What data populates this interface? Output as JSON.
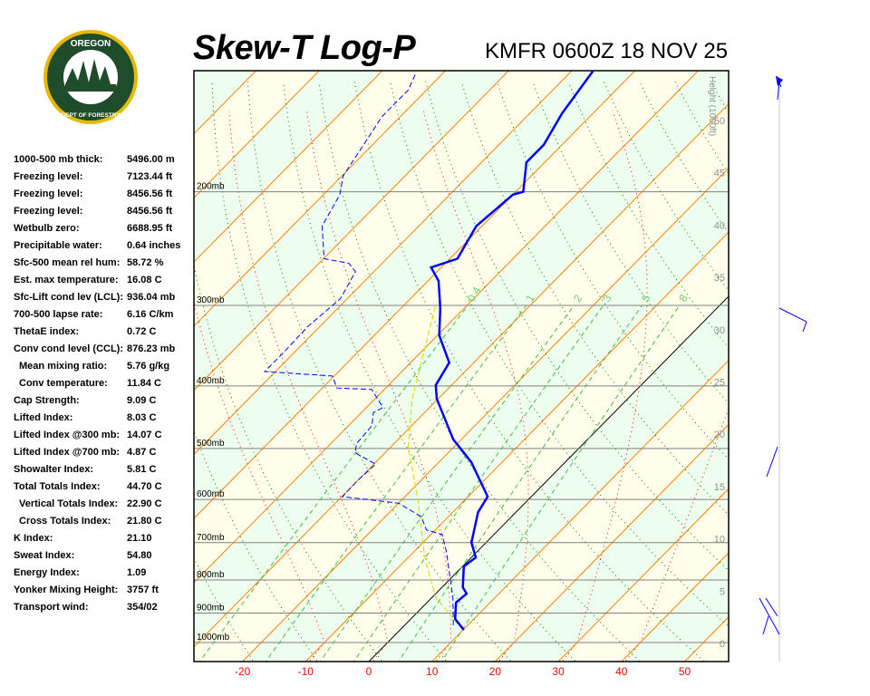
{
  "header": {
    "title": "Skew-T Log-P",
    "station": "KMFR 0600Z 18 NOV 25",
    "logo_text": [
      "OREGON",
      "DEPARTMENT OF FORESTRY"
    ]
  },
  "stats": [
    {
      "label": "1000-500 mb thick:",
      "value": "5496.00 m"
    },
    {
      "label": "Freezing level:",
      "value": "7123.44 ft"
    },
    {
      "label": "Freezing level:",
      "value": "8456.56 ft"
    },
    {
      "label": "Freezing level:",
      "value": "8456.56 ft"
    },
    {
      "label": "Wetbulb zero:",
      "value": "6688.95 ft"
    },
    {
      "label": "Precipitable water:",
      "value": "0.64 inches"
    },
    {
      "label": "Sfc-500 mean rel hum:",
      "value": "58.72 %"
    },
    {
      "label": "Est. max temperature:",
      "value": "16.08 C"
    },
    {
      "label": "Sfc-Lift cond lev (LCL):",
      "value": "936.04 mb"
    },
    {
      "label": "700-500 lapse rate:",
      "value": "6.16 C/km"
    },
    {
      "label": "ThetaE index:",
      "value": "0.72 C"
    },
    {
      "label": "Conv cond level (CCL):",
      "value": "876.23 mb"
    },
    {
      "label": "Mean mixing ratio:",
      "value": "5.76 g/kg",
      "indent": true
    },
    {
      "label": "Conv temperature:",
      "value": "11.84 C",
      "indent": true
    },
    {
      "label": "Cap Strength:",
      "value": "9.09 C"
    },
    {
      "label": "Lifted Index:",
      "value": "8.03 C"
    },
    {
      "label": "Lifted Index @300 mb:",
      "value": "14.07 C"
    },
    {
      "label": "Lifted Index @700 mb:",
      "value": "4.87 C"
    },
    {
      "label": "Showalter Index:",
      "value": "5.81 C"
    },
    {
      "label": "Total Totals Index:",
      "value": "44.70 C"
    },
    {
      "label": "Vertical Totals Index:",
      "value": "22.90 C",
      "indent": true
    },
    {
      "label": "Cross Totals Index:",
      "value": "21.80 C",
      "indent": true
    },
    {
      "label": "K Index:",
      "value": "21.10"
    },
    {
      "label": "Sweat Index:",
      "value": "54.80"
    },
    {
      "label": "Energy Index:",
      "value": "1.09"
    },
    {
      "label": "Yonker Mixing Height:",
      "value": "3757 ft"
    },
    {
      "label": "Transport wind:",
      "value": "354/02"
    }
  ],
  "chart_data": {
    "type": "skew-t log-p",
    "xlabel_ticks": [
      "-20",
      "-10",
      "0",
      "10",
      "20",
      "30",
      "40",
      "50"
    ],
    "x_tick_values": [
      -20,
      -10,
      0,
      10,
      20,
      30,
      40,
      50
    ],
    "xlim_celsius": [
      -28,
      57
    ],
    "pressure_levels": [
      200,
      300,
      400,
      500,
      600,
      700,
      800,
      900,
      1000
    ],
    "pressure_labels": [
      "200mb",
      "300mb",
      "400mb",
      "500mb",
      "600mb",
      "700mb",
      "800mb",
      "900mb",
      "1000mb"
    ],
    "plim_mb": [
      1070,
      130
    ],
    "height_axis_label": "Height (1000ft)",
    "height_ticks_kft": [
      "0",
      "5",
      "10",
      "15",
      "20",
      "25",
      "30",
      "35",
      "40",
      "45",
      "50"
    ],
    "mixing_ratio_labels": [
      "0.4",
      "1",
      "2",
      "3",
      "5",
      "8"
    ],
    "mixing_ratio_values": [
      0.4,
      1,
      2,
      3,
      5,
      8
    ],
    "colors": {
      "temperature": "#0000ff",
      "dewpoint": "#0000ff",
      "parcel": "#e0e000",
      "isotherm": "#ff8000",
      "dry_adiabat": "#008000",
      "moist_adiabat": "#ff0000",
      "mixing_ratio": "#40c040",
      "band_green": "#eefeee",
      "band_yellow": "#fefeea",
      "tick_label": "#ff0000"
    },
    "temperature": [
      [
        956,
        10.1
      ],
      [
        919,
        7.0
      ],
      [
        867,
        4.6
      ],
      [
        840,
        4.9
      ],
      [
        821,
        3.3
      ],
      [
        762,
        0.2
      ],
      [
        738,
        0.7
      ],
      [
        700,
        -2.3
      ],
      [
        628,
        -6.0
      ],
      [
        594,
        -6.9
      ],
      [
        525,
        -14.9
      ],
      [
        484,
        -21.3
      ],
      [
        419,
        -30.2
      ],
      [
        399,
        -32.5
      ],
      [
        368,
        -33.9
      ],
      [
        334,
        -39.7
      ],
      [
        303,
        -43.8
      ],
      [
        275,
        -48.3
      ],
      [
        262,
        -51.6
      ],
      [
        254,
        -48.8
      ],
      [
        226,
        -50.9
      ],
      [
        202,
        -50.0
      ],
      [
        200,
        -48.8
      ],
      [
        180,
        -52.9
      ],
      [
        169,
        -52.9
      ],
      [
        151,
        -54.9
      ],
      [
        130,
        -56.6
      ]
    ],
    "dewpoint": [
      [
        940,
        7.7
      ],
      [
        853,
        3.4
      ],
      [
        800,
        0.2
      ],
      [
        721,
        -5.0
      ],
      [
        680,
        -8.2
      ],
      [
        669,
        -11.4
      ],
      [
        638,
        -14.3
      ],
      [
        608,
        -20.0
      ],
      [
        594,
        -29.9
      ],
      [
        560,
        -30.0
      ],
      [
        529,
        -29.7
      ],
      [
        508,
        -34.7
      ],
      [
        492,
        -35.9
      ],
      [
        461,
        -36.3
      ],
      [
        440,
        -38.1
      ],
      [
        432,
        -37.4
      ],
      [
        405,
        -42.0
      ],
      [
        403,
        -47.7
      ],
      [
        386,
        -50.3
      ],
      [
        380,
        -61.7
      ],
      [
        356,
        -61.7
      ],
      [
        323,
        -61.9
      ],
      [
        293,
        -61.1
      ],
      [
        266,
        -62.9
      ],
      [
        258,
        -65.3
      ],
      [
        254,
        -69.9
      ],
      [
        226,
        -75.3
      ],
      [
        202,
        -77.4
      ],
      [
        189,
        -79.8
      ],
      [
        175,
        -80.9
      ],
      [
        153,
        -82.9
      ],
      [
        139,
        -82.9
      ],
      [
        131,
        -84.3
      ]
    ],
    "parcel": [
      [
        956,
        10.1
      ],
      [
        936,
        8.2
      ],
      [
        850,
        0.5
      ],
      [
        750,
        -6.5
      ],
      [
        700,
        -10.0
      ],
      [
        600,
        -17.5
      ],
      [
        500,
        -27.0
      ],
      [
        420,
        -34.0
      ],
      [
        300,
        -45.0
      ]
    ]
  }
}
